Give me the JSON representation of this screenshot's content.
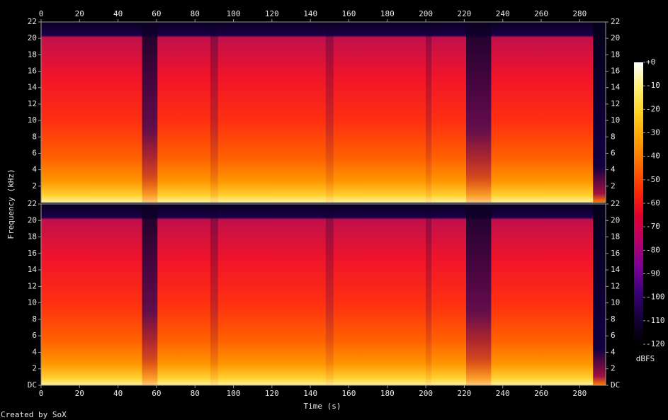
{
  "chart_data": {
    "type": "spectrogram",
    "xlabel": "Time (s)",
    "ylabel": "Frequency (kHz)",
    "footnote": "Created by SoX",
    "xlim": [
      0,
      293.5
    ],
    "xticks": [
      0,
      20,
      40,
      60,
      80,
      100,
      120,
      140,
      160,
      180,
      200,
      220,
      240,
      260,
      280
    ],
    "ylim": [
      0,
      22
    ],
    "panels": [
      {
        "yticks": [
          2,
          4,
          6,
          8,
          10,
          12,
          14,
          16,
          18,
          20,
          22
        ]
      },
      {
        "yticks": [
          {
            "value": 0,
            "label": "DC"
          },
          2,
          4,
          6,
          8,
          10,
          12,
          14,
          16,
          18,
          20,
          22
        ]
      }
    ],
    "colorbar": {
      "label": "dBFS",
      "lim": [
        -120,
        0
      ],
      "ticks": [
        {
          "value": 0,
          "label": "+0"
        },
        -10,
        -20,
        -30,
        -40,
        -50,
        -60,
        -70,
        -80,
        -90,
        -100,
        -110,
        -120
      ],
      "colormap": [
        "#000000",
        "#14003a",
        "#3a0078",
        "#7a0098",
        "#b4006a",
        "#e0002e",
        "#ff2a00",
        "#ff6a00",
        "#ffa000",
        "#ffd020",
        "#fff070",
        "#ffffff"
      ]
    }
  }
}
